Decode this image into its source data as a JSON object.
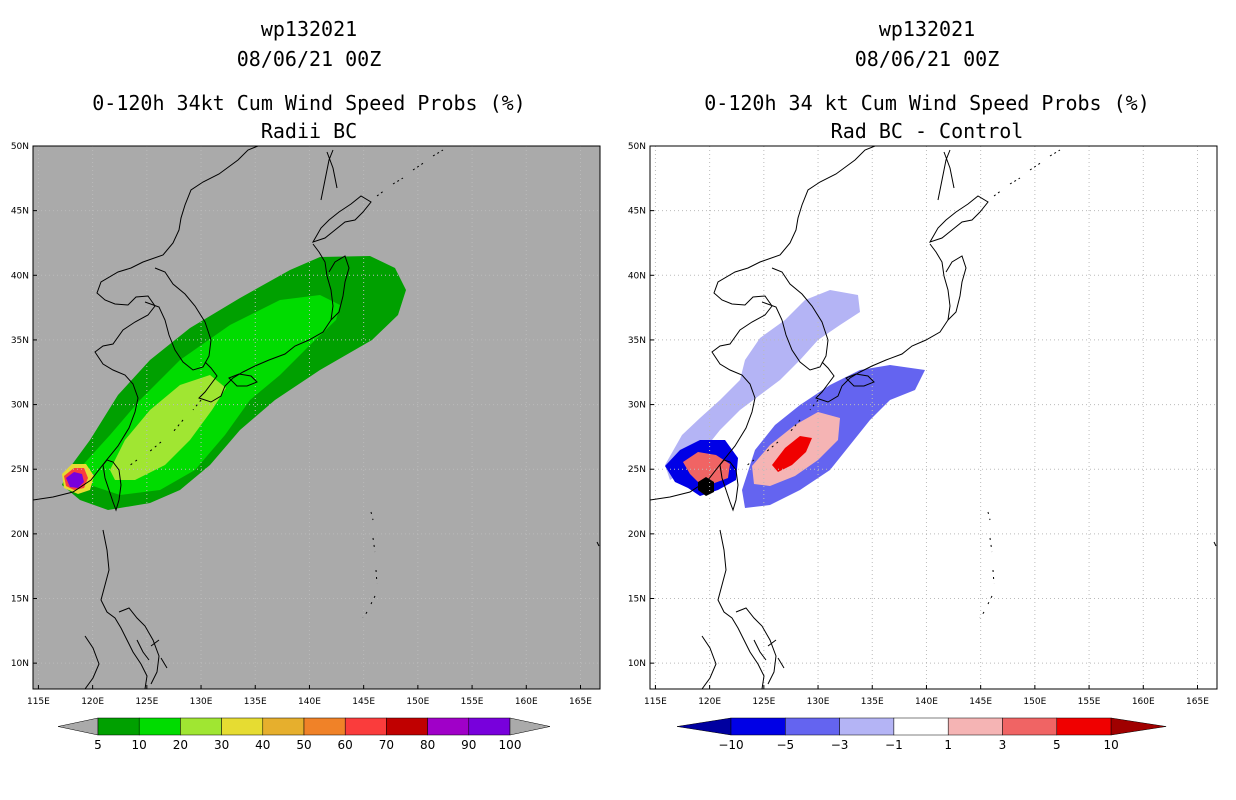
{
  "left_panel": {
    "title1": "wp132021",
    "title2": "08/06/21 00Z",
    "title3": "0-120h 34kt Cum Wind Speed Probs (%)",
    "title4": "Radii BC",
    "background_color": "#aaaaaa",
    "colorbar": {
      "labels": [
        "5",
        "10",
        "20",
        "30",
        "40",
        "50",
        "60",
        "70",
        "80",
        "90",
        "100"
      ],
      "colors": [
        "#00a000",
        "#00dc00",
        "#a0e632",
        "#e6dc32",
        "#e6af2d",
        "#f08228",
        "#fa3c3c",
        "#c00000",
        "#a000c8",
        "#7800dc"
      ]
    },
    "probability_regions": [
      {
        "level": "5",
        "color": "#00a000"
      },
      {
        "level": "10",
        "color": "#00dc00"
      },
      {
        "level": "20",
        "color": "#a0e632"
      },
      {
        "level": "30",
        "color": "#e6dc32"
      },
      {
        "level": "70",
        "color": "#fa3c3c"
      },
      {
        "level": "100",
        "color": "#7800dc"
      }
    ]
  },
  "right_panel": {
    "title1": "wp132021",
    "title2": "08/06/21 00Z",
    "title3": "0-120h 34 kt Cum Wind Speed Probs (%)",
    "title4": "Rad BC - Control",
    "background_color": "#ffffff",
    "colorbar": {
      "labels": [
        "−10",
        "−5",
        "−3",
        "−1",
        "1",
        "3",
        "5",
        "10"
      ],
      "colors": [
        "#0000a0",
        "#0000e6",
        "#6464f0",
        "#b4b4f5",
        "#ffffff",
        "#f5b4b4",
        "#f06464",
        "#f00000",
        "#a00000"
      ]
    },
    "difference_regions": [
      {
        "level": "-3",
        "color": "#b4b4f5"
      },
      {
        "level": "-5",
        "color": "#6464f0"
      },
      {
        "level": "-10",
        "color": "#0000e6"
      },
      {
        "level": "3",
        "color": "#f5b4b4"
      },
      {
        "level": "5",
        "color": "#f06464"
      },
      {
        "level": "10",
        "color": "#f00000"
      }
    ]
  },
  "map": {
    "lon_labels": [
      "115E",
      "120E",
      "125E",
      "130E",
      "135E",
      "140E",
      "145E",
      "150E",
      "155E",
      "160E",
      "165E"
    ],
    "lon_values": [
      115,
      120,
      125,
      130,
      135,
      140,
      145,
      150,
      155,
      160,
      165
    ],
    "lat_labels": [
      "10N",
      "15N",
      "20N",
      "25N",
      "30N",
      "35N",
      "40N",
      "45N",
      "50N"
    ],
    "lat_values": [
      10,
      15,
      20,
      25,
      30,
      35,
      40,
      45,
      50
    ],
    "lon_range": [
      114.5,
      166.8
    ],
    "lat_range": [
      8,
      50
    ],
    "grid_color": "#bbbbbb"
  }
}
